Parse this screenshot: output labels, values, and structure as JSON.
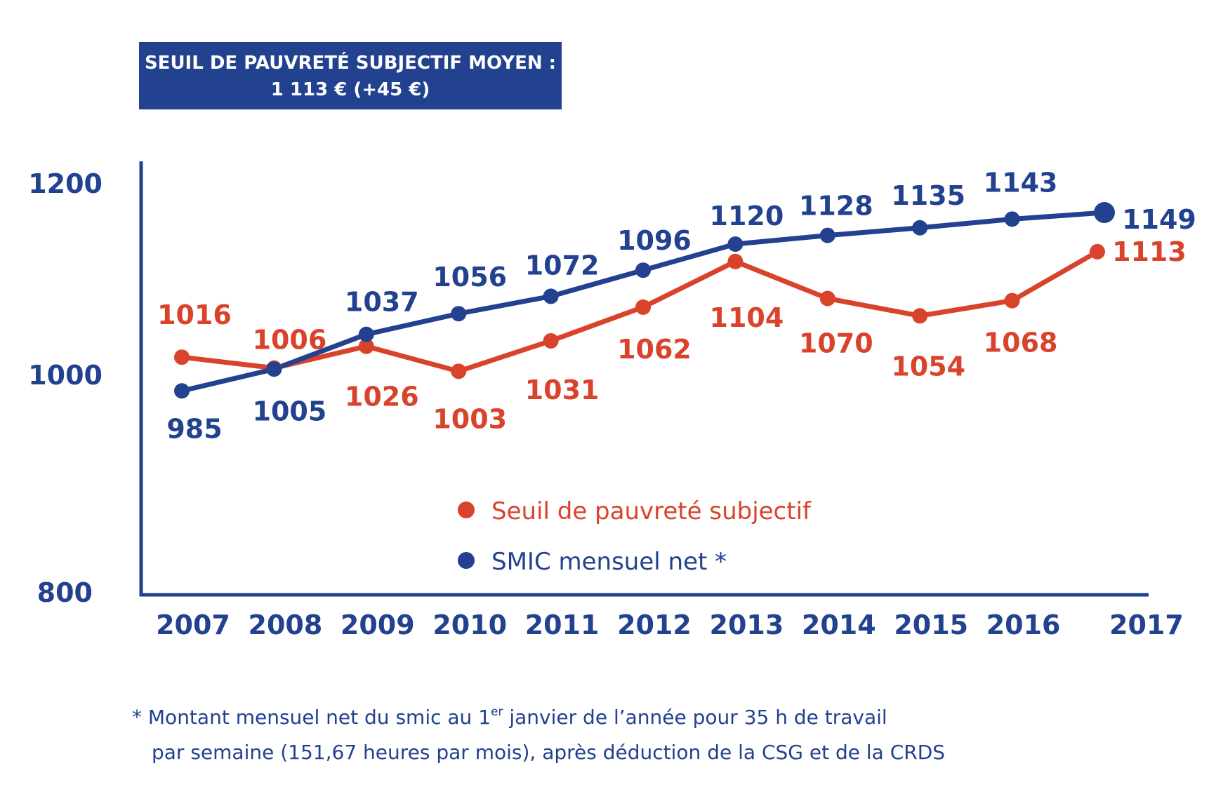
{
  "header": {
    "line1": "SEUIL DE PAUVRETÉ SUBJECTIF MOYEN :",
    "line2": "1 113 € (+45 €)"
  },
  "colors": {
    "blue": "#22418f",
    "red": "#d9432b"
  },
  "chart_data": {
    "type": "line",
    "categories": [
      "2007",
      "2008",
      "2009",
      "2010",
      "2011",
      "2012",
      "2013",
      "2014",
      "2015",
      "2016",
      "2017"
    ],
    "ylim": [
      800,
      1200
    ],
    "yticks": [
      "800",
      "1000",
      "1200"
    ],
    "series": [
      {
        "name": "Seuil de pauvreté subjectif",
        "color": "#d9432b",
        "x": [
          0,
          1,
          2,
          3,
          4,
          5,
          6,
          7,
          8,
          9,
          10
        ],
        "values": [
          1016,
          1006,
          1026,
          1003,
          1031,
          1062,
          1104,
          1070,
          1054,
          1068,
          1113
        ],
        "labels": [
          "1016",
          "1006",
          "1026",
          "1003",
          "1031",
          "1062",
          "1104",
          "1070",
          "1054",
          "1068",
          "1113"
        ]
      },
      {
        "name": "SMIC mensuel net *",
        "color": "#22418f",
        "x": [
          0,
          1,
          2,
          3,
          4,
          5,
          6,
          7,
          8,
          9,
          10
        ],
        "values": [
          985,
          1005,
          1037,
          1056,
          1072,
          1096,
          1120,
          1128,
          1135,
          1143,
          1149
        ],
        "labels": [
          "985",
          "1005",
          "1037",
          "1056",
          "1072",
          "1096",
          "1120",
          "1128",
          "1135",
          "1143",
          "1149"
        ]
      }
    ]
  },
  "footnote": {
    "line1_pre": "* Montant mensuel net du smic au 1",
    "line1_sup": "er",
    "line1_post": " janvier de l’année pour 35 h de travail",
    "line2": "par semaine (151,67 heures par mois), après déduction de la CSG et de la CRDS"
  }
}
